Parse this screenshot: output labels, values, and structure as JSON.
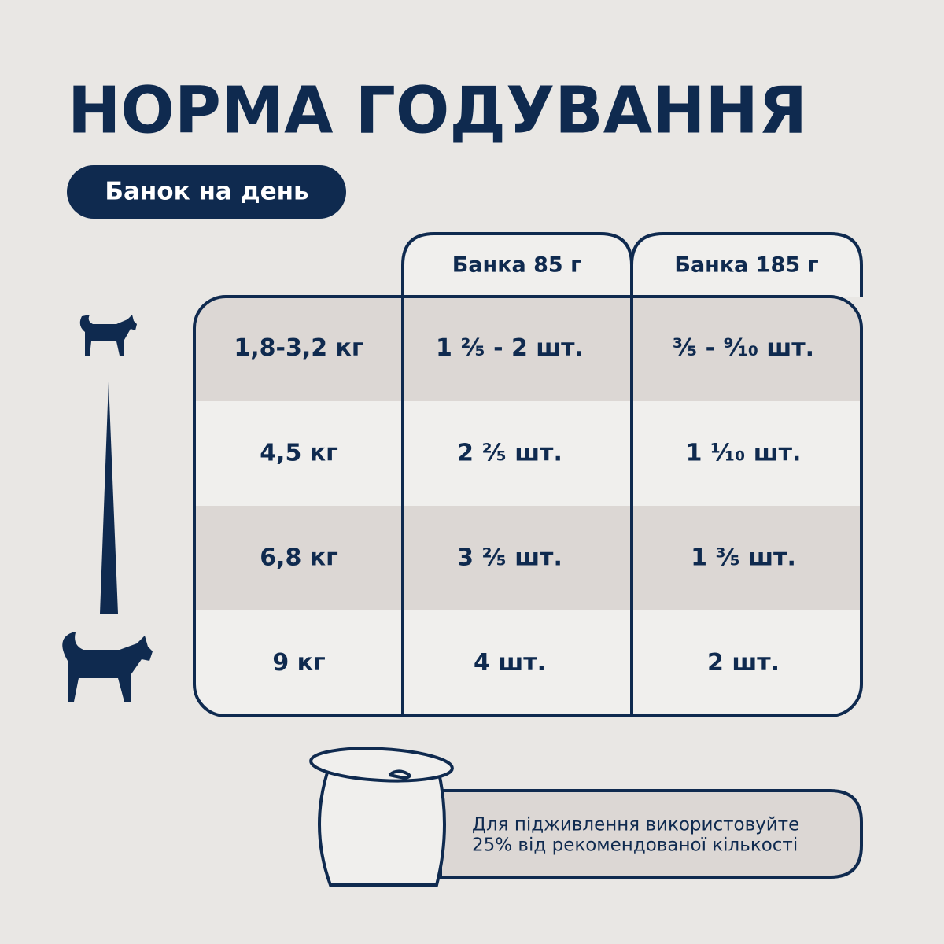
{
  "header": {
    "title": "НОРМА ГОДУВАННЯ",
    "badge": "Банок на день"
  },
  "table": {
    "columns": [
      "Банка 85 г",
      "Банка 185 г"
    ],
    "rows": [
      [
        "1,8-3,2 кг",
        "1 ²⁄₅ - 2 шт.",
        "³⁄₅ - ⁹⁄₁₀  шт."
      ],
      [
        "4,5 кг",
        "2 ²⁄₅ шт.",
        "1 ¹⁄₁₀ шт."
      ],
      [
        "6,8 кг",
        "3 ²⁄₅ шт.",
        "1 ³⁄₅  шт."
      ],
      [
        "9 кг",
        "4 шт.",
        "2 шт."
      ]
    ]
  },
  "note": {
    "lines": [
      "Для підживлення використовуйте",
      "25% від рекомендованої кількості"
    ]
  }
}
